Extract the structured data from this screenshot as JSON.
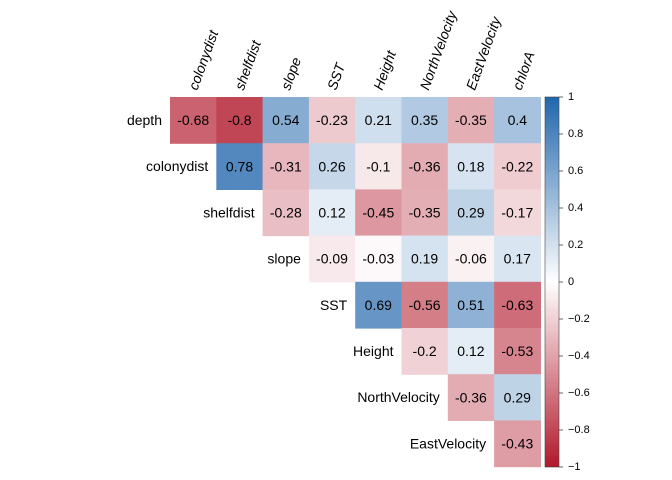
{
  "chart_data": {
    "type": "heatmap",
    "title": "",
    "variables": [
      "depth",
      "colonydist",
      "shelfdist",
      "slope",
      "SST",
      "Height",
      "NorthVelocity",
      "EastVelocity",
      "chlorA"
    ],
    "row_labels": [
      "depth",
      "colonydist",
      "shelfdist",
      "slope",
      "SST",
      "Height",
      "NorthVelocity",
      "EastVelocity"
    ],
    "column_labels": [
      "colonydist",
      "shelfdist",
      "slope",
      "SST",
      "Height",
      "NorthVelocity",
      "EastVelocity",
      "chlorA"
    ],
    "layout": "upper-triangle",
    "matrix": [
      [
        -0.68,
        -0.8,
        0.54,
        -0.23,
        0.21,
        0.35,
        -0.35,
        0.4
      ],
      [
        null,
        0.78,
        -0.31,
        0.26,
        -0.1,
        -0.36,
        0.18,
        -0.22
      ],
      [
        null,
        null,
        -0.28,
        0.12,
        -0.45,
        -0.35,
        0.29,
        -0.17
      ],
      [
        null,
        null,
        null,
        -0.09,
        -0.03,
        0.19,
        -0.06,
        0.17
      ],
      [
        null,
        null,
        null,
        null,
        0.69,
        -0.56,
        0.51,
        -0.63
      ],
      [
        null,
        null,
        null,
        null,
        null,
        -0.2,
        0.12,
        -0.53
      ],
      [
        null,
        null,
        null,
        null,
        null,
        null,
        -0.36,
        0.29
      ],
      [
        null,
        null,
        null,
        null,
        null,
        null,
        null,
        -0.43
      ]
    ],
    "color_scale": {
      "min": -1,
      "max": 1,
      "stops": [
        {
          "value": -1,
          "color": "#B2182B"
        },
        {
          "value": 0,
          "color": "#FFFFFF"
        },
        {
          "value": 1,
          "color": "#2166AC"
        }
      ],
      "ticks": [
        1,
        0.8,
        0.6,
        0.4,
        0.2,
        0,
        -0.2,
        -0.4,
        -0.6,
        -0.8,
        -1
      ],
      "tick_labels": [
        "1",
        "0.8",
        "0.6",
        "0.4",
        "0.2",
        "0",
        "−0.2",
        "−0.4",
        "−0.6",
        "−0.8",
        "−1"
      ]
    },
    "legend": "right",
    "grid": false
  }
}
